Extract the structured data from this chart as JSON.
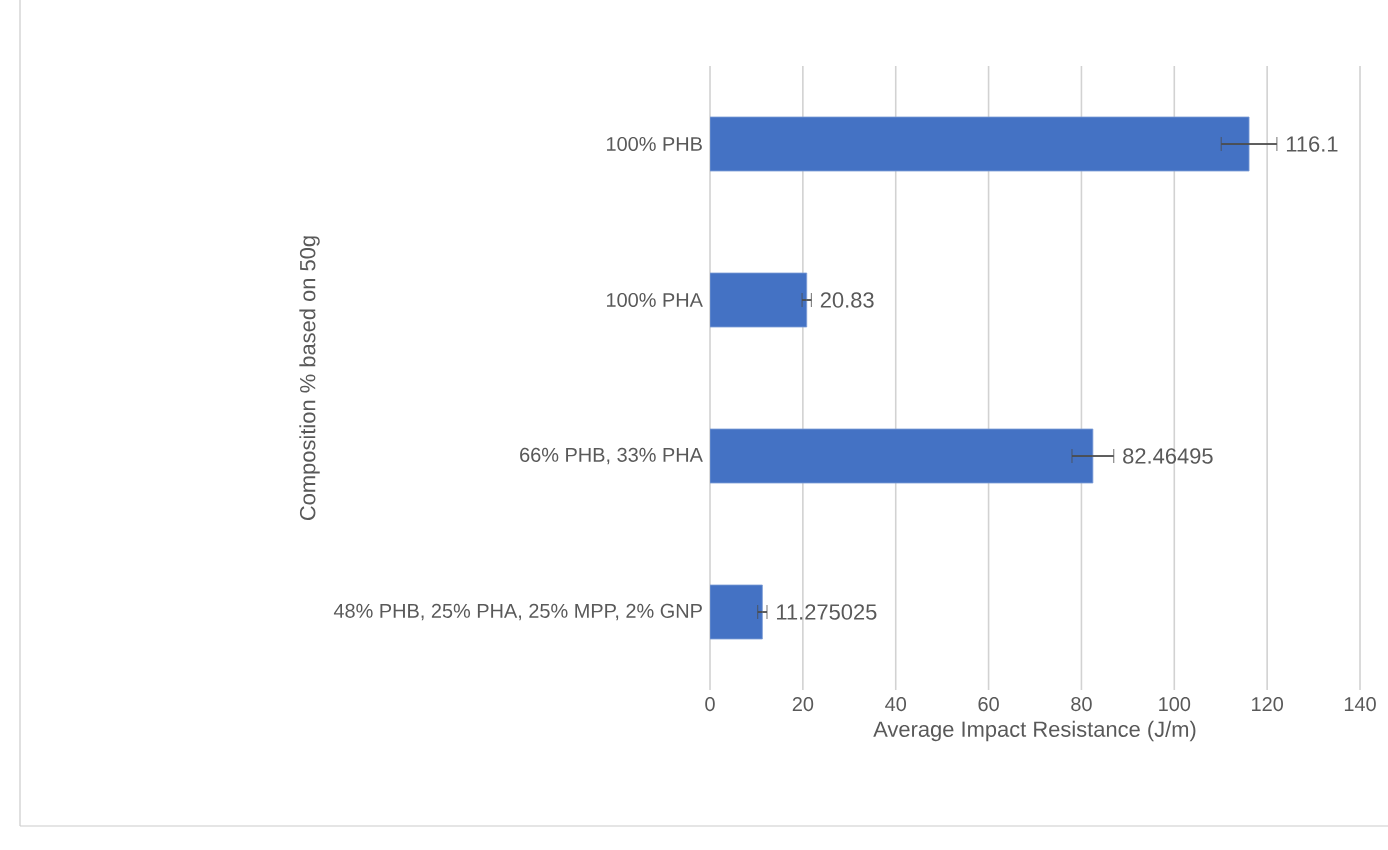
{
  "chart_data": {
    "type": "bar",
    "orientation": "horizontal",
    "xlabel": "Average Impact Resistance (J/m)",
    "ylabel": "Composition % based on 50g",
    "categories": [
      "100% PHB",
      "100% PHA",
      "66% PHB, 33% PHA",
      "48% PHB, 25% PHA, 25% MPP, 2% GNP"
    ],
    "values": [
      116.1,
      20.83,
      82.46495,
      11.275025
    ],
    "errors": [
      6,
      1,
      4.5,
      1
    ],
    "color": "#4472c4",
    "data_labels": true,
    "grid": "x",
    "xlim": [
      0,
      140
    ],
    "xticks": [
      0,
      20,
      40,
      60,
      80,
      100,
      120,
      140
    ]
  }
}
